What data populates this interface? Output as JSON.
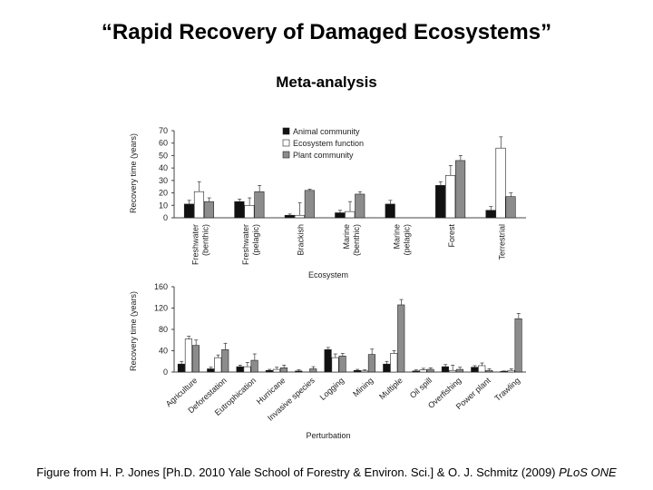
{
  "slide": {
    "title": "“Rapid Recovery of Damaged Ecosystems”",
    "subtitle": "Meta-analysis",
    "caption_main": "Figure from H. P. Jones [Ph.D. 2010 Yale School of Forestry & Environ. Sci.] & O. J. Schmitz (2009) ",
    "caption_journal": "PLoS ONE"
  },
  "colors": {
    "animal": "#111111",
    "ecosystem": "#ffffff",
    "plant": "#8c8c8c",
    "axis": "#444444"
  },
  "chart_data": [
    {
      "type": "bar",
      "title": "",
      "xlabel": "Ecosystem",
      "ylabel": "Recovery time (years)",
      "ylim": [
        0,
        70
      ],
      "yticks": [
        0,
        10,
        20,
        30,
        40,
        50,
        60,
        70
      ],
      "legend_position": "top-right",
      "categories": [
        "Freshwater (benthic)",
        "Freshwater (pelagic)",
        "Brackish",
        "Marine (benthic)",
        "Marine (pelagic)",
        "Forest",
        "Terrestrial"
      ],
      "series": [
        {
          "name": "Animal community",
          "values": [
            11,
            13,
            2,
            4,
            11,
            26,
            6
          ],
          "errors": [
            3,
            2,
            1,
            2,
            3,
            3,
            3
          ]
        },
        {
          "name": "Ecosystem function",
          "values": [
            21,
            10,
            2,
            5,
            null,
            34,
            56
          ],
          "errors": [
            8,
            6,
            10,
            8,
            null,
            8,
            9
          ]
        },
        {
          "name": "Plant community",
          "values": [
            13,
            21,
            22,
            19,
            null,
            46,
            17
          ],
          "errors": [
            3,
            5,
            1,
            2,
            null,
            4,
            3
          ]
        }
      ]
    },
    {
      "type": "bar",
      "title": "",
      "xlabel": "Perturbation",
      "ylabel": "Recovery time (years)",
      "ylim": [
        0,
        160
      ],
      "yticks": [
        0,
        40,
        80,
        120,
        160
      ],
      "categories": [
        "Agriculture",
        "Deforestation",
        "Eutrophication",
        "Hurricane",
        "Invasive species",
        "Logging",
        "Mining",
        "Multiple",
        "Oil spill",
        "Overfishing",
        "Power plant",
        "Trawling"
      ],
      "series": [
        {
          "name": "Animal community",
          "values": [
            15,
            6,
            10,
            3,
            2,
            42,
            3,
            15,
            2,
            10,
            9,
            1
          ],
          "errors": [
            5,
            3,
            3,
            2,
            2,
            4,
            2,
            5,
            2,
            4,
            3,
            1
          ]
        },
        {
          "name": "Ecosystem function",
          "values": [
            62,
            27,
            10,
            5,
            null,
            27,
            2,
            35,
            4,
            3,
            12,
            3
          ],
          "errors": [
            5,
            5,
            8,
            4,
            null,
            7,
            2,
            5,
            3,
            10,
            5,
            3
          ]
        },
        {
          "name": "Plant community",
          "values": [
            50,
            42,
            22,
            8,
            6,
            30,
            33,
            126,
            5,
            5,
            3,
            100
          ],
          "errors": [
            10,
            12,
            12,
            5,
            4,
            5,
            10,
            10,
            3,
            4,
            3,
            10
          ]
        }
      ]
    }
  ]
}
